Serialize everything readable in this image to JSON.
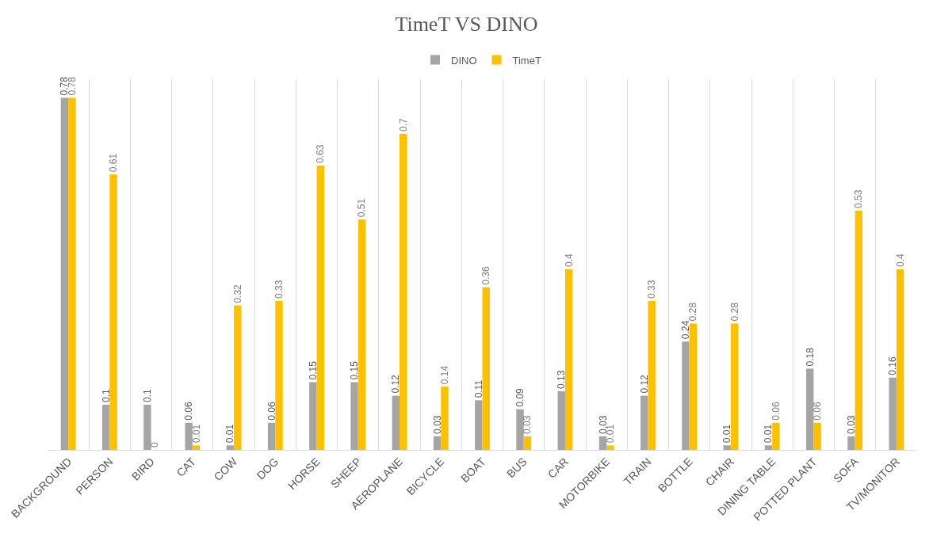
{
  "chart_data": {
    "type": "bar",
    "title": "TimeT VS DINO",
    "categories": [
      "BACKGROUND",
      "PERSON",
      "BIRD",
      "CAT",
      "COW",
      "DOG",
      "HORSE",
      "SHEEP",
      "AEROPLANE",
      "BICYCLE",
      "BOAT",
      "BUS",
      "CAR",
      "MOTORBIKE",
      "TRAIN",
      "BOTTLE",
      "CHAIR",
      "DINING TABLE",
      "POTTED PLANT",
      "SOFA",
      "TV/MONITOR"
    ],
    "series": [
      {
        "name": "DINO",
        "color": "#a5a5a5",
        "values": [
          0.78,
          0.1,
          0.1,
          0.06,
          0.01,
          0.06,
          0.15,
          0.15,
          0.12,
          0.03,
          0.11,
          0.09,
          0.13,
          0.03,
          0.12,
          0.24,
          0.01,
          0.01,
          0.18,
          0.03,
          0.16
        ]
      },
      {
        "name": "TimeT",
        "color": "#ffc000",
        "values": [
          0.78,
          0.61,
          0,
          0.01,
          0.32,
          0.33,
          0.63,
          0.51,
          0.7,
          0.14,
          0.36,
          0.03,
          0.4,
          0.01,
          0.33,
          0.28,
          0.28,
          0.06,
          0.06,
          0.53,
          0.4
        ]
      }
    ],
    "data_labels": true,
    "grid": "x",
    "legend": "top"
  }
}
